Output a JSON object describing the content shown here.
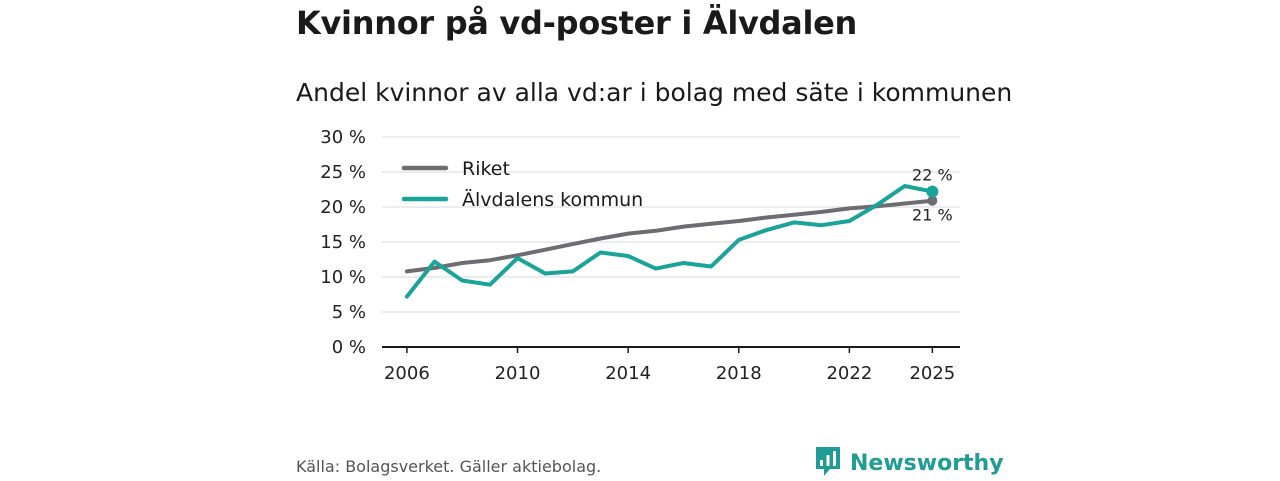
{
  "title": "Kvinnor på vd-poster i Älvdalen",
  "subtitle": "Andel kvinnor av alla vd:ar i bolag med säte i kommunen",
  "source": "Källa: Bolagsverket. Gäller aktiebolag.",
  "brand": {
    "name": "Newsworthy",
    "icon": "newsworthy-logo-icon",
    "color": "#1f9d95"
  },
  "chart_data": {
    "type": "line",
    "title": "Kvinnor på vd-poster i Älvdalen",
    "subtitle": "Andel kvinnor av alla vd:ar i bolag med säte i kommunen",
    "xlabel": "",
    "ylabel": "",
    "xlim": [
      2005.1,
      2026.0
    ],
    "ylim": [
      0,
      30
    ],
    "grid": true,
    "legend_position": "top-left",
    "x_ticks": [
      2006,
      2010,
      2014,
      2018,
      2022,
      2025
    ],
    "x_tick_labels": [
      "2006",
      "2010",
      "2014",
      "2018",
      "2022",
      "2025"
    ],
    "y_ticks": [
      0,
      5,
      10,
      15,
      20,
      25,
      30
    ],
    "y_tick_labels": [
      "0 %",
      "5 %",
      "10 %",
      "15 %",
      "20 %",
      "25 %",
      "30 %"
    ],
    "x": [
      2006,
      2007,
      2008,
      2009,
      2010,
      2011,
      2012,
      2013,
      2014,
      2015,
      2016,
      2017,
      2018,
      2019,
      2020,
      2021,
      2022,
      2023,
      2024,
      2025
    ],
    "series": [
      {
        "name": "Riket",
        "color": "#6e6c73",
        "values": [
          10.8,
          11.3,
          12.0,
          12.4,
          13.1,
          13.9,
          14.7,
          15.5,
          16.2,
          16.6,
          17.2,
          17.6,
          18.0,
          18.5,
          18.9,
          19.3,
          19.8,
          20.1,
          20.5,
          20.9
        ],
        "end_label": "21 %"
      },
      {
        "name": "Älvdalens kommun",
        "color": "#1aa39a",
        "values": [
          7.2,
          12.2,
          9.5,
          8.9,
          12.7,
          10.5,
          10.8,
          13.5,
          13.0,
          11.2,
          12.0,
          11.5,
          15.3,
          16.7,
          17.8,
          17.4,
          18.0,
          20.3,
          23.0,
          22.2
        ],
        "end_label": "22 %"
      }
    ]
  }
}
